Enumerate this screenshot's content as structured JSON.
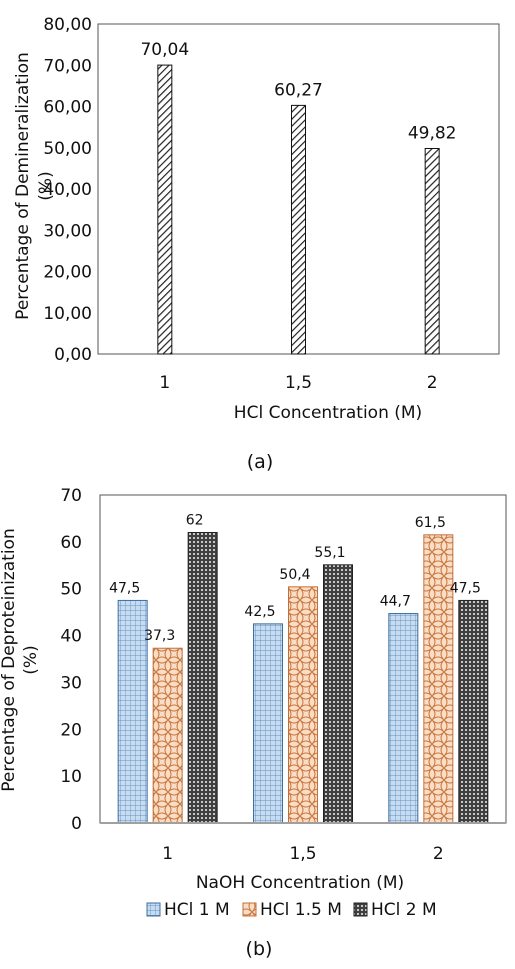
{
  "chart_data": [
    {
      "type": "bar",
      "categories": [
        "1",
        "1,5",
        "2"
      ],
      "values": [
        70.04,
        60.27,
        49.82
      ],
      "data_labels": [
        "70,04",
        "60,27",
        "49,82"
      ],
      "ylabel": "Percentage of Demineralization (%)",
      "ylabel_lines": [
        "Percentage of Demineralization",
        "(%)"
      ],
      "xlabel": "HCl Concentration (M)",
      "ylim": [
        0,
        80
      ],
      "yticks": [
        "0,00",
        "10,00",
        "20,00",
        "30,00",
        "40,00",
        "50,00",
        "60,00",
        "70,00",
        "80,00"
      ],
      "caption": "(a)",
      "grid": false,
      "legend": "none"
    },
    {
      "type": "bar",
      "categories": [
        "1",
        "1,5",
        "2"
      ],
      "series": [
        {
          "name": "HCl 1 M",
          "values": [
            47.5,
            42.5,
            44.7
          ],
          "labels": [
            "47,5",
            "42,5",
            "44,7"
          ],
          "color": "#9fc3e6"
        },
        {
          "name": "HCl 1.5 M",
          "values": [
            37.3,
            50.4,
            61.5
          ],
          "labels": [
            "37,3",
            "50,4",
            "61,5"
          ],
          "color": "#f4b183"
        },
        {
          "name": "HCl 2 M",
          "values": [
            62,
            55.1,
            47.5
          ],
          "labels": [
            "62",
            "55,1",
            "47,5"
          ],
          "color": "#6b6b6b"
        }
      ],
      "ylabel": "Percentage of Deproteinization (%)",
      "ylabel_lines": [
        "Percentage of Deproteinization",
        "(%)"
      ],
      "xlabel": "NaOH Concentration (M)",
      "ylim": [
        0,
        70
      ],
      "yticks": [
        "0",
        "10",
        "20",
        "30",
        "40",
        "50",
        "60",
        "70"
      ],
      "caption": "(b)",
      "grid": false,
      "legend": "bottom"
    }
  ]
}
